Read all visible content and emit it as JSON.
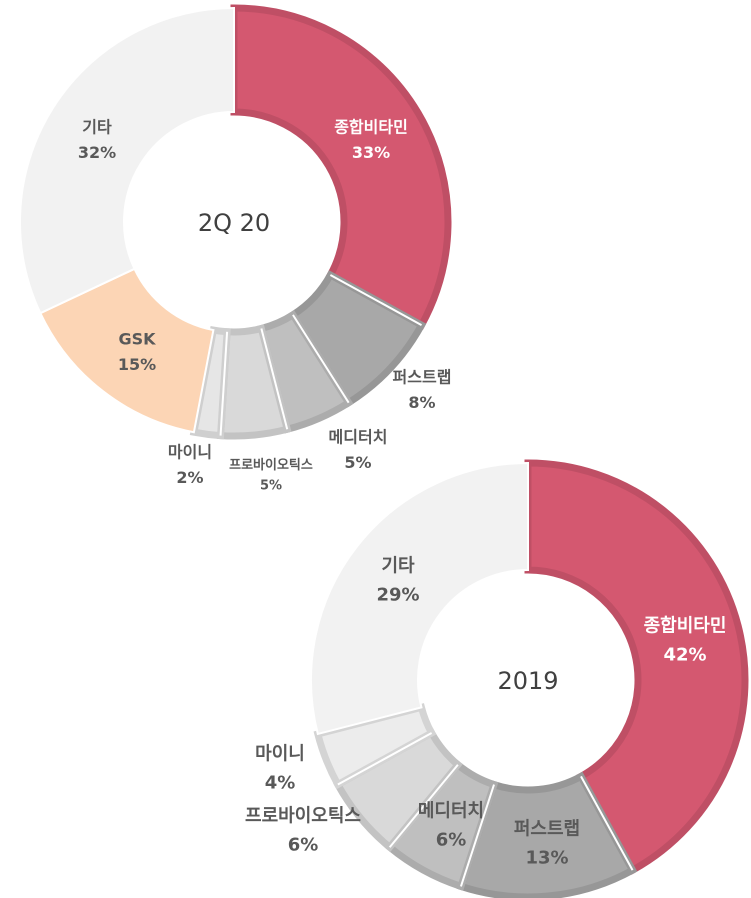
{
  "chart_data": [
    {
      "type": "donut",
      "title": "2Q 20",
      "categories": [
        "종합비타민",
        "퍼스트랩",
        "메디터치",
        "프로바이오틱스",
        "마이니",
        "GSK",
        "기타"
      ],
      "values": [
        33,
        8,
        5,
        5,
        2,
        15,
        32
      ],
      "value_labels": [
        "33%",
        "8%",
        "5%",
        "5%",
        "2%",
        "15%",
        "32%"
      ],
      "colors": [
        "#d45870",
        "#a8a8a8",
        "#bfbfbf",
        "#d9d9d9",
        "#e6e6e6",
        "#fcd5b5",
        "#f2f2f2"
      ]
    },
    {
      "type": "donut",
      "title": "2019",
      "categories": [
        "종합비타민",
        "퍼스트랩",
        "메디터치",
        "프로바이오틱스",
        "마이니",
        "기타"
      ],
      "values": [
        42,
        13,
        6,
        6,
        4,
        29
      ],
      "value_labels": [
        "42%",
        "13%",
        "6%",
        "6%",
        "4%",
        "29%"
      ],
      "colors": [
        "#d45870",
        "#a8a8a8",
        "#bfbfbf",
        "#d9d9d9",
        "#ececec",
        "#f2f2f2"
      ]
    }
  ]
}
